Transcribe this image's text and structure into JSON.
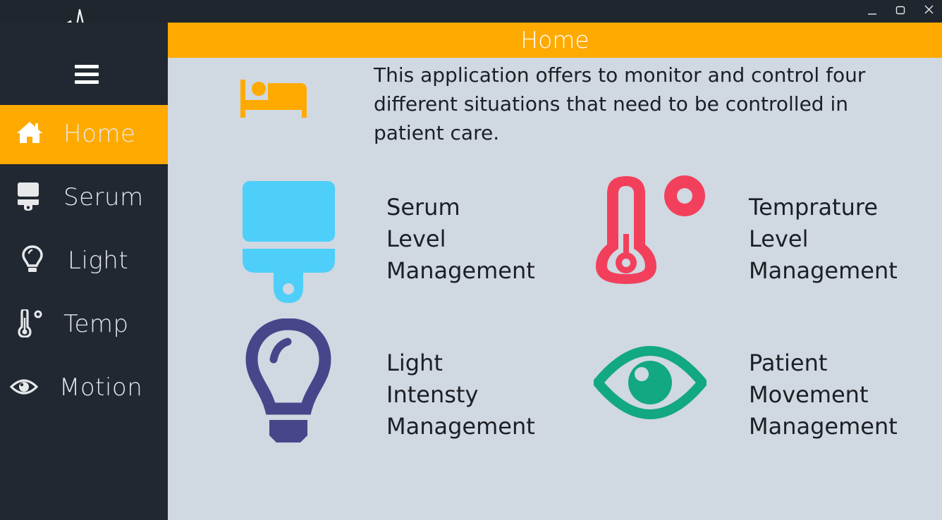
{
  "window": {
    "minimize_icon": "minimize-icon",
    "maximize_icon": "maximize-icon",
    "close_icon": "close-icon"
  },
  "sidebar": {
    "menu_icon": "hamburger-menu-icon",
    "items": [
      {
        "label": "Home",
        "icon": "home-icon",
        "active": true
      },
      {
        "label": "Serum",
        "icon": "iv-bag-icon",
        "active": false
      },
      {
        "label": "Light",
        "icon": "lightbulb-icon",
        "active": false
      },
      {
        "label": "Temp",
        "icon": "thermometer-icon",
        "active": false
      },
      {
        "label": "Motion",
        "icon": "eye-icon",
        "active": false
      }
    ]
  },
  "header": {
    "title": "Home"
  },
  "intro": {
    "icon": "bed-icon",
    "text": "This application offers to monitor and control four different situations that need to be controlled in patient care."
  },
  "features": [
    {
      "icon": "iv-bag-icon",
      "lines": [
        "Serum",
        "Level",
        "Management"
      ]
    },
    {
      "icon": "thermometer-icon",
      "lines": [
        "Temprature",
        "Level",
        "Management"
      ]
    },
    {
      "icon": "lightbulb-icon",
      "lines": [
        "Light",
        "Intensty",
        "Management"
      ]
    },
    {
      "icon": "eye-icon",
      "lines": [
        "Patient",
        "Movement",
        "Management"
      ]
    }
  ],
  "colors": {
    "accent": "#ffaa00",
    "sidebar": "#212831",
    "content_bg": "#d0d8e1",
    "serum": "#4dcffa",
    "temperature": "#f2405c",
    "light": "#47468a",
    "motion": "#12a882"
  }
}
